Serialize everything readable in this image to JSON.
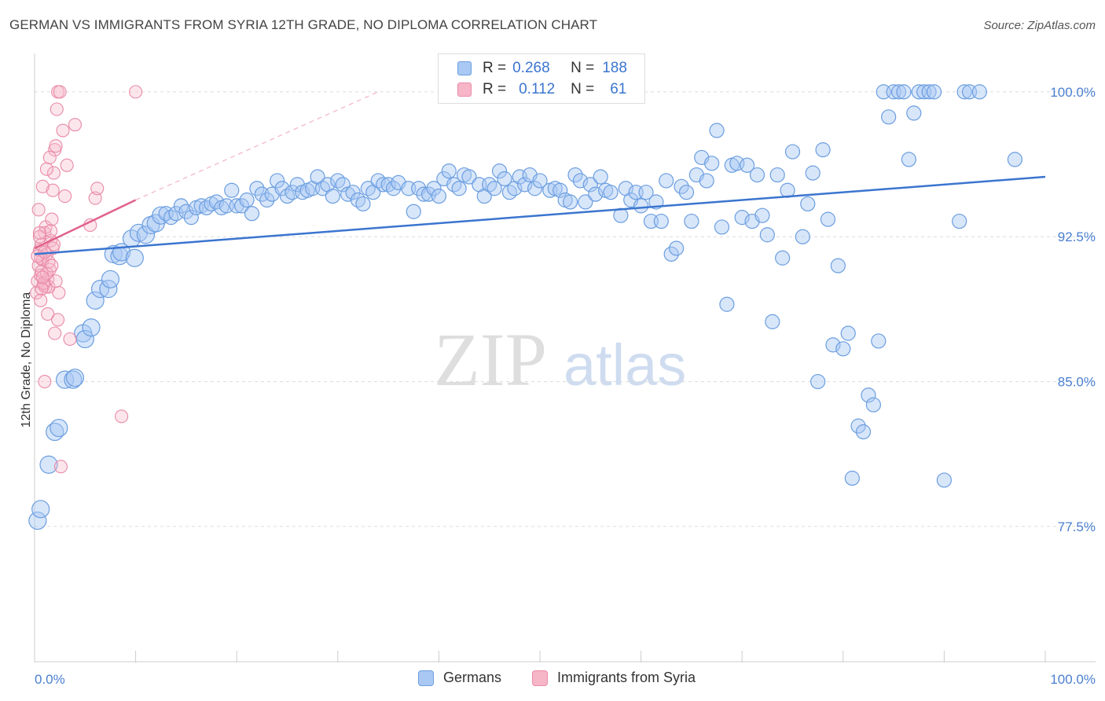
{
  "header": {
    "title": "GERMAN VS IMMIGRANTS FROM SYRIA 12TH GRADE, NO DIPLOMA CORRELATION CHART",
    "source": "Source: ZipAtlas.com"
  },
  "watermark": {
    "zip": "ZIP",
    "atlas": "atlas"
  },
  "legend": {
    "rows": [
      {
        "r_label": "R =",
        "r_value": "0.268",
        "n_label": "N =",
        "n_value": "188",
        "color": "#a9c8f3",
        "border": "#6b9ee0"
      },
      {
        "r_label": "R =",
        "r_value": "0.112",
        "n_label": "N =",
        "n_value": "61",
        "color": "#f7b6c8",
        "border": "#e98aa8"
      }
    ]
  },
  "bottom_legend": [
    {
      "label": "Germans",
      "color": "#a9c8f3",
      "border": "#6b9ee0"
    },
    {
      "label": "Immigrants from Syria",
      "color": "#f7b6c8",
      "border": "#e98aa8"
    }
  ],
  "chart_data": {
    "type": "scatter",
    "title": "GERMAN VS IMMIGRANTS FROM SYRIA 12TH GRADE, NO DIPLOMA CORRELATION CHART",
    "xlabel": "",
    "ylabel": "12th Grade, No Diploma",
    "xlim": [
      0,
      100
    ],
    "ylim": [
      70.5,
      101.5
    ],
    "x_tick_labels": [
      "0.0%",
      "100.0%"
    ],
    "y_ticks": [
      {
        "value": 100.0,
        "label": "100.0%"
      },
      {
        "value": 92.5,
        "label": "92.5%"
      },
      {
        "value": 85.0,
        "label": "85.0%"
      },
      {
        "value": 77.5,
        "label": "77.5%"
      }
    ],
    "grid": "dashed-horizontal",
    "colors": {
      "germans": "#6b9ee0",
      "syria": "#e98aa8",
      "germans_line": "#3b75cf",
      "syria_line": "#e0628c"
    },
    "series": [
      {
        "name": "Germans",
        "trend": {
          "x": [
            0,
            100
          ],
          "y": [
            91.6,
            95.6
          ]
        },
        "points": [
          [
            0.3,
            77.8
          ],
          [
            0.6,
            78.4
          ],
          [
            1.4,
            80.7
          ],
          [
            2.0,
            82.4
          ],
          [
            2.4,
            82.6
          ],
          [
            3.0,
            85.1
          ],
          [
            3.8,
            85.1
          ],
          [
            4.0,
            85.2
          ],
          [
            4.8,
            87.5
          ],
          [
            5.0,
            87.2
          ],
          [
            5.6,
            87.8
          ],
          [
            6.0,
            89.2
          ],
          [
            6.5,
            89.8
          ],
          [
            7.3,
            89.8
          ],
          [
            7.5,
            90.3
          ],
          [
            7.8,
            91.6
          ],
          [
            8.4,
            91.5
          ],
          [
            8.6,
            91.7
          ],
          [
            9.6,
            92.4
          ],
          [
            9.9,
            91.4
          ],
          [
            10.3,
            92.7
          ],
          [
            11.0,
            92.6
          ],
          [
            11.5,
            93.1
          ],
          [
            12.0,
            93.2
          ],
          [
            12.5,
            93.6
          ],
          [
            13.0,
            93.7
          ],
          [
            13.5,
            93.5
          ],
          [
            14.0,
            93.7
          ],
          [
            14.5,
            94.1
          ],
          [
            15.0,
            93.8
          ],
          [
            15.5,
            93.5
          ],
          [
            16.0,
            94.0
          ],
          [
            16.5,
            94.1
          ],
          [
            17.0,
            94.0
          ],
          [
            17.5,
            94.2
          ],
          [
            18.0,
            94.3
          ],
          [
            18.5,
            94.0
          ],
          [
            19.0,
            94.1
          ],
          [
            19.5,
            94.9
          ],
          [
            20.0,
            94.1
          ],
          [
            20.5,
            94.1
          ],
          [
            21.0,
            94.4
          ],
          [
            21.5,
            93.7
          ],
          [
            22.0,
            95.0
          ],
          [
            22.5,
            94.7
          ],
          [
            23.0,
            94.4
          ],
          [
            23.5,
            94.7
          ],
          [
            24.0,
            95.4
          ],
          [
            24.5,
            95.0
          ],
          [
            25.0,
            94.6
          ],
          [
            25.5,
            94.8
          ],
          [
            26.0,
            95.2
          ],
          [
            26.5,
            94.8
          ],
          [
            27.0,
            94.9
          ],
          [
            27.5,
            95.0
          ],
          [
            28.0,
            95.6
          ],
          [
            28.5,
            95.0
          ],
          [
            29.0,
            95.2
          ],
          [
            29.5,
            94.6
          ],
          [
            30.0,
            95.4
          ],
          [
            30.5,
            95.2
          ],
          [
            31.0,
            94.7
          ],
          [
            31.5,
            94.8
          ],
          [
            32.0,
            94.4
          ],
          [
            32.5,
            94.2
          ],
          [
            33.0,
            95.0
          ],
          [
            33.5,
            94.8
          ],
          [
            34.0,
            95.4
          ],
          [
            34.5,
            95.2
          ],
          [
            35.0,
            95.2
          ],
          [
            35.5,
            95.0
          ],
          [
            36.0,
            95.3
          ],
          [
            37.0,
            95.0
          ],
          [
            37.5,
            93.8
          ],
          [
            38.0,
            95.0
          ],
          [
            38.5,
            94.7
          ],
          [
            39.0,
            94.7
          ],
          [
            39.5,
            95.0
          ],
          [
            40.0,
            94.6
          ],
          [
            40.5,
            95.5
          ],
          [
            41.0,
            95.9
          ],
          [
            41.5,
            95.2
          ],
          [
            42.0,
            95.0
          ],
          [
            42.5,
            95.7
          ],
          [
            43.0,
            95.6
          ],
          [
            44.0,
            95.2
          ],
          [
            44.5,
            94.6
          ],
          [
            45.0,
            95.2
          ],
          [
            45.5,
            95.0
          ],
          [
            46.0,
            95.9
          ],
          [
            46.5,
            95.5
          ],
          [
            47.0,
            94.8
          ],
          [
            47.5,
            95.0
          ],
          [
            48.0,
            95.6
          ],
          [
            48.5,
            95.2
          ],
          [
            49.0,
            95.7
          ],
          [
            49.5,
            95.0
          ],
          [
            50.0,
            95.4
          ],
          [
            51.0,
            94.9
          ],
          [
            51.5,
            95.0
          ],
          [
            52.0,
            94.9
          ],
          [
            52.5,
            94.4
          ],
          [
            53.0,
            94.3
          ],
          [
            53.5,
            95.7
          ],
          [
            54.0,
            95.4
          ],
          [
            54.5,
            94.3
          ],
          [
            55.0,
            95.2
          ],
          [
            55.5,
            94.7
          ],
          [
            56.0,
            95.6
          ],
          [
            56.5,
            94.9
          ],
          [
            57.0,
            94.8
          ],
          [
            58.0,
            93.6
          ],
          [
            58.5,
            95.0
          ],
          [
            59.0,
            94.4
          ],
          [
            59.5,
            94.8
          ],
          [
            60.0,
            94.1
          ],
          [
            60.5,
            94.8
          ],
          [
            61.0,
            93.3
          ],
          [
            61.5,
            94.3
          ],
          [
            62.0,
            93.3
          ],
          [
            62.5,
            95.4
          ],
          [
            63.0,
            91.6
          ],
          [
            63.5,
            91.9
          ],
          [
            64.0,
            95.1
          ],
          [
            64.5,
            94.8
          ],
          [
            65.0,
            93.3
          ],
          [
            65.5,
            95.7
          ],
          [
            66.0,
            96.6
          ],
          [
            66.5,
            95.4
          ],
          [
            67.0,
            96.3
          ],
          [
            67.5,
            98.0
          ],
          [
            68.0,
            93.0
          ],
          [
            68.5,
            89.0
          ],
          [
            69.0,
            96.2
          ],
          [
            69.5,
            96.3
          ],
          [
            70.0,
            93.5
          ],
          [
            70.5,
            96.2
          ],
          [
            71.0,
            93.3
          ],
          [
            71.5,
            95.7
          ],
          [
            72.0,
            93.6
          ],
          [
            72.5,
            92.6
          ],
          [
            73.0,
            88.1
          ],
          [
            73.5,
            95.7
          ],
          [
            74.0,
            91.4
          ],
          [
            74.5,
            94.9
          ],
          [
            75.0,
            96.9
          ],
          [
            76.0,
            92.5
          ],
          [
            76.5,
            94.2
          ],
          [
            77.0,
            95.8
          ],
          [
            77.5,
            85.0
          ],
          [
            78.0,
            97.0
          ],
          [
            78.5,
            93.4
          ],
          [
            79.0,
            86.9
          ],
          [
            79.5,
            91.0
          ],
          [
            80.0,
            86.7
          ],
          [
            80.5,
            87.5
          ],
          [
            80.9,
            80.0
          ],
          [
            81.5,
            82.7
          ],
          [
            82.0,
            82.4
          ],
          [
            82.5,
            84.3
          ],
          [
            83.0,
            83.8
          ],
          [
            83.5,
            87.1
          ],
          [
            84.0,
            100.0
          ],
          [
            84.5,
            98.7
          ],
          [
            85.0,
            100.0
          ],
          [
            85.5,
            100.0
          ],
          [
            86.0,
            100.0
          ],
          [
            86.5,
            96.5
          ],
          [
            87.0,
            98.9
          ],
          [
            87.5,
            100.0
          ],
          [
            88.0,
            100.0
          ],
          [
            88.5,
            100.0
          ],
          [
            89.0,
            100.0
          ],
          [
            90.0,
            79.9
          ],
          [
            91.5,
            93.3
          ],
          [
            92.0,
            100.0
          ],
          [
            92.5,
            100.0
          ],
          [
            93.5,
            100.0
          ],
          [
            97.0,
            96.5
          ]
        ]
      },
      {
        "name": "Immigrants from Syria",
        "trend": {
          "x": [
            0,
            10
          ],
          "y": [
            91.9,
            94.4
          ]
        },
        "trend_ext": {
          "x": [
            10,
            34
          ],
          "y": [
            94.4,
            100.0
          ]
        },
        "points": [
          [
            0.2,
            89.6
          ],
          [
            0.3,
            90.2
          ],
          [
            0.4,
            91.0
          ],
          [
            0.5,
            91.8
          ],
          [
            0.6,
            90.5
          ],
          [
            0.7,
            92.1
          ],
          [
            0.8,
            91.3
          ],
          [
            0.9,
            90.0
          ],
          [
            1.0,
            92.7
          ],
          [
            1.1,
            93.0
          ],
          [
            1.2,
            91.6
          ],
          [
            1.3,
            90.3
          ],
          [
            1.4,
            89.9
          ],
          [
            1.5,
            90.8
          ],
          [
            1.6,
            92.3
          ],
          [
            1.7,
            93.4
          ],
          [
            1.8,
            94.9
          ],
          [
            1.9,
            95.8
          ],
          [
            2.0,
            97.0
          ],
          [
            2.1,
            97.2
          ],
          [
            2.2,
            99.1
          ],
          [
            2.3,
            100.0
          ],
          [
            2.5,
            100.0
          ],
          [
            0.4,
            93.9
          ],
          [
            0.5,
            92.5
          ],
          [
            0.6,
            91.4
          ],
          [
            0.7,
            90.7
          ],
          [
            0.8,
            95.1
          ],
          [
            1.0,
            85.0
          ],
          [
            1.2,
            96.0
          ],
          [
            1.5,
            96.6
          ],
          [
            2.0,
            87.5
          ],
          [
            2.3,
            88.2
          ],
          [
            2.6,
            80.6
          ],
          [
            2.8,
            98.0
          ],
          [
            3.0,
            94.6
          ],
          [
            3.2,
            96.2
          ],
          [
            3.5,
            87.2
          ],
          [
            4.0,
            98.3
          ],
          [
            5.5,
            93.1
          ],
          [
            6.0,
            94.5
          ],
          [
            6.2,
            95.0
          ],
          [
            8.6,
            83.2
          ],
          [
            10.0,
            100.0
          ],
          [
            1.1,
            89.9
          ],
          [
            1.4,
            91.2
          ],
          [
            1.6,
            92.8
          ],
          [
            1.8,
            91.9
          ],
          [
            0.9,
            90.1
          ],
          [
            1.2,
            90.6
          ],
          [
            0.3,
            91.5
          ],
          [
            0.7,
            89.8
          ],
          [
            1.9,
            92.1
          ],
          [
            0.5,
            92.7
          ],
          [
            1.3,
            88.5
          ],
          [
            2.4,
            89.6
          ],
          [
            0.8,
            90.4
          ],
          [
            1.0,
            91.7
          ],
          [
            0.6,
            89.2
          ],
          [
            1.7,
            91.0
          ],
          [
            2.1,
            90.2
          ]
        ]
      }
    ]
  }
}
